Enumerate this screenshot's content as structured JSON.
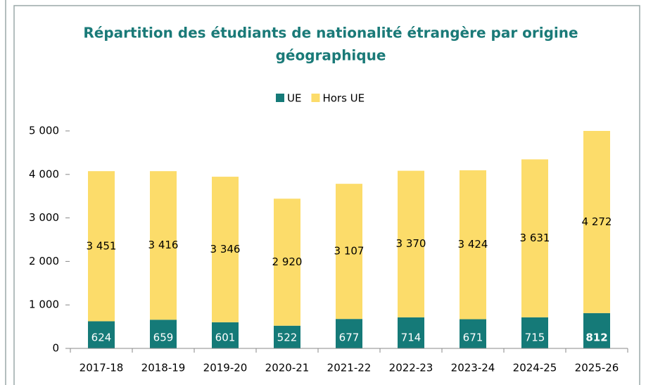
{
  "chart_data": {
    "type": "stacked_bar",
    "title": [
      "Répartition des étudiants de nationalité étrangère par origine",
      "géographique"
    ],
    "categories": [
      "2017-18",
      "2018-19",
      "2019-20",
      "2020-21",
      "2021-22",
      "2022-23",
      "2023-24",
      "2024-25",
      "2025-26"
    ],
    "series": [
      {
        "name": "UE",
        "color": "#157a78",
        "values": [
          624,
          659,
          601,
          522,
          677,
          714,
          671,
          715,
          812
        ]
      },
      {
        "name": "Hors UE",
        "color": "#fcdc6a",
        "values": [
          3451,
          3416,
          3346,
          2920,
          3107,
          3370,
          3424,
          3631,
          4272
        ],
        "value_labels": [
          "3 451",
          "3 416",
          "3 346",
          "2 920",
          "3 107",
          "3 370",
          "3 424",
          "3 631",
          "4 272"
        ]
      }
    ],
    "ylim": [
      0,
      5000
    ],
    "yticks": [
      {
        "value": 0,
        "label": "0"
      },
      {
        "value": 1000,
        "label": "1 000"
      },
      {
        "value": 2000,
        "label": "2 000"
      },
      {
        "value": 3000,
        "label": "3 000"
      },
      {
        "value": 4000,
        "label": "4 000"
      },
      {
        "value": 5000,
        "label": "5 000"
      }
    ],
    "legend": "top"
  }
}
